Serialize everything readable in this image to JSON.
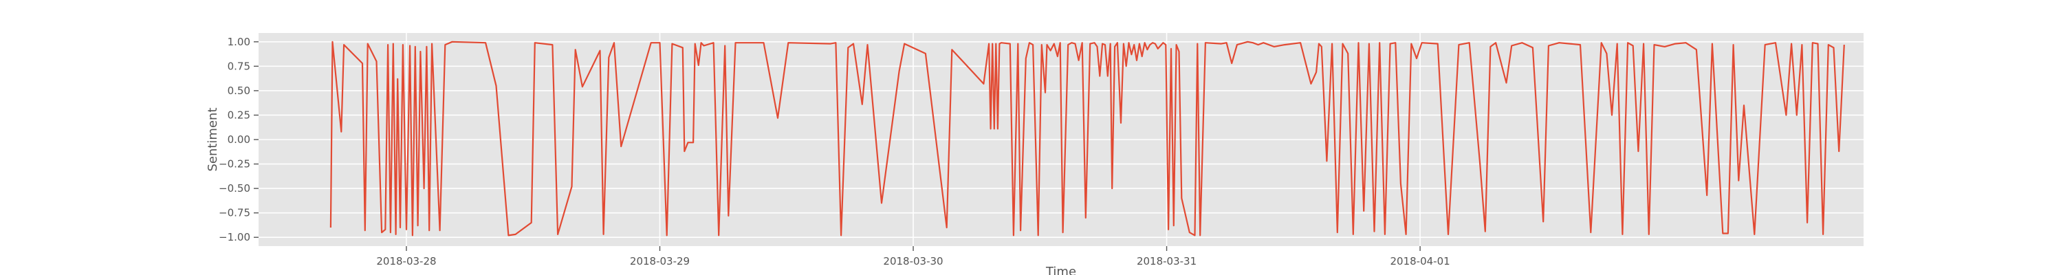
{
  "chart_data": {
    "type": "line",
    "title": "",
    "xlabel": "Time",
    "ylabel": "Sentiment",
    "ylim": [
      -1.09,
      1.09
    ],
    "xlim": [
      "2018-03-27T10:00",
      "2018-04-02T18:00"
    ],
    "grid": true,
    "line_color": "#e24a33",
    "background": "#e5e5e5",
    "yticks": [
      {
        "value": 1.0,
        "label": "1.00"
      },
      {
        "value": 0.75,
        "label": "0.75"
      },
      {
        "value": 0.5,
        "label": "0.50"
      },
      {
        "value": 0.25,
        "label": "0.25"
      },
      {
        "value": 0.0,
        "label": "0.00"
      },
      {
        "value": -0.25,
        "label": "−0.25"
      },
      {
        "value": -0.5,
        "label": "−0.50"
      },
      {
        "value": -0.75,
        "label": "−0.75"
      },
      {
        "value": -1.0,
        "label": "−1.00"
      }
    ],
    "xticks": [
      {
        "value": "2018-03-28T00:00",
        "label": "2018-03-28"
      },
      {
        "value": "2018-03-29T00:00",
        "label": "2018-03-29"
      },
      {
        "value": "2018-03-30T00:00",
        "label": "2018-03-30"
      },
      {
        "value": "2018-03-31T00:00",
        "label": "2018-03-31"
      },
      {
        "value": "2018-04-01T00:00",
        "label": "2018-04-01"
      }
    ],
    "series": [
      {
        "points": [
          [
            "2018-03-27T16:50",
            -0.9
          ],
          [
            "2018-03-27T17:00",
            1.0
          ],
          [
            "2018-03-27T17:50",
            0.08
          ],
          [
            "2018-03-27T18:05",
            0.97
          ],
          [
            "2018-03-27T19:50",
            0.78
          ],
          [
            "2018-03-27T20:05",
            -0.93
          ],
          [
            "2018-03-27T20:20",
            0.98
          ],
          [
            "2018-03-27T21:10",
            0.8
          ],
          [
            "2018-03-27T21:40",
            -0.95
          ],
          [
            "2018-03-27T22:00",
            -0.92
          ],
          [
            "2018-03-27T22:15",
            0.97
          ],
          [
            "2018-03-27T22:30",
            -0.95
          ],
          [
            "2018-03-27T22:45",
            0.98
          ],
          [
            "2018-03-27T23:00",
            -0.97
          ],
          [
            "2018-03-27T23:10",
            0.62
          ],
          [
            "2018-03-27T23:25",
            -0.9
          ],
          [
            "2018-03-27T23:40",
            0.97
          ],
          [
            "2018-03-28T00:00",
            -0.92
          ],
          [
            "2018-03-28T00:20",
            0.96
          ],
          [
            "2018-03-28T00:35",
            -0.98
          ],
          [
            "2018-03-28T00:50",
            0.95
          ],
          [
            "2018-03-28T01:05",
            -0.88
          ],
          [
            "2018-03-28T01:20",
            0.9
          ],
          [
            "2018-03-28T01:40",
            -0.5
          ],
          [
            "2018-03-28T01:55",
            0.95
          ],
          [
            "2018-03-28T02:10",
            -0.93
          ],
          [
            "2018-03-28T02:25",
            0.98
          ],
          [
            "2018-03-28T03:10",
            -0.93
          ],
          [
            "2018-03-28T03:40",
            0.97
          ],
          [
            "2018-03-28T04:20",
            1.0
          ],
          [
            "2018-03-28T07:30",
            0.99
          ],
          [
            "2018-03-28T08:30",
            0.55
          ],
          [
            "2018-03-28T09:40",
            -0.98
          ],
          [
            "2018-03-28T10:20",
            -0.97
          ],
          [
            "2018-03-28T11:50",
            -0.85
          ],
          [
            "2018-03-28T12:10",
            0.99
          ],
          [
            "2018-03-28T13:50",
            0.97
          ],
          [
            "2018-03-28T14:20",
            -0.97
          ],
          [
            "2018-03-28T15:40",
            -0.48
          ],
          [
            "2018-03-28T16:00",
            0.92
          ],
          [
            "2018-03-28T16:40",
            0.54
          ],
          [
            "2018-03-28T18:20",
            0.91
          ],
          [
            "2018-03-28T18:40",
            -0.97
          ],
          [
            "2018-03-28T19:10",
            0.84
          ],
          [
            "2018-03-28T19:40",
            0.99
          ],
          [
            "2018-03-28T20:20",
            -0.07
          ],
          [
            "2018-03-28T23:10",
            0.99
          ],
          [
            "2018-03-29T00:00",
            0.99
          ],
          [
            "2018-03-29T00:40",
            -0.98
          ],
          [
            "2018-03-29T01:10",
            0.98
          ],
          [
            "2018-03-29T02:10",
            0.94
          ],
          [
            "2018-03-29T02:20",
            -0.12
          ],
          [
            "2018-03-29T02:40",
            -0.03
          ],
          [
            "2018-03-29T03:10",
            -0.03
          ],
          [
            "2018-03-29T03:20",
            0.98
          ],
          [
            "2018-03-29T03:40",
            0.76
          ],
          [
            "2018-03-29T03:55",
            0.99
          ],
          [
            "2018-03-29T04:10",
            0.96
          ],
          [
            "2018-03-29T05:05",
            0.99
          ],
          [
            "2018-03-29T05:35",
            -0.98
          ],
          [
            "2018-03-29T06:10",
            0.96
          ],
          [
            "2018-03-29T06:30",
            -0.78
          ],
          [
            "2018-03-29T07:10",
            0.99
          ],
          [
            "2018-03-29T09:50",
            0.99
          ],
          [
            "2018-03-29T11:10",
            0.22
          ],
          [
            "2018-03-29T12:10",
            0.99
          ],
          [
            "2018-03-29T16:10",
            0.98
          ],
          [
            "2018-03-29T16:40",
            0.99
          ],
          [
            "2018-03-29T17:10",
            -0.98
          ],
          [
            "2018-03-29T17:50",
            0.94
          ],
          [
            "2018-03-29T18:20",
            0.98
          ],
          [
            "2018-03-29T19:10",
            0.36
          ],
          [
            "2018-03-29T19:40",
            0.97
          ],
          [
            "2018-03-29T21:00",
            -0.65
          ],
          [
            "2018-03-29T22:40",
            0.7
          ],
          [
            "2018-03-29T23:10",
            0.98
          ],
          [
            "2018-03-30T01:10",
            0.88
          ],
          [
            "2018-03-30T03:10",
            -0.9
          ],
          [
            "2018-03-30T03:40",
            0.92
          ],
          [
            "2018-03-30T06:40",
            0.57
          ],
          [
            "2018-03-30T07:10",
            0.98
          ],
          [
            "2018-03-30T07:20",
            0.11
          ],
          [
            "2018-03-30T07:30",
            0.98
          ],
          [
            "2018-03-30T07:40",
            0.11
          ],
          [
            "2018-03-30T07:50",
            0.98
          ],
          [
            "2018-03-30T08:00",
            0.11
          ],
          [
            "2018-03-30T08:10",
            0.98
          ],
          [
            "2018-03-30T08:20",
            0.99
          ],
          [
            "2018-03-30T09:10",
            0.98
          ],
          [
            "2018-03-30T09:30",
            -0.98
          ],
          [
            "2018-03-30T09:55",
            0.98
          ],
          [
            "2018-03-30T10:10",
            -0.93
          ],
          [
            "2018-03-30T10:40",
            0.83
          ],
          [
            "2018-03-30T11:00",
            0.99
          ],
          [
            "2018-03-30T11:20",
            0.97
          ],
          [
            "2018-03-30T11:50",
            -0.98
          ],
          [
            "2018-03-30T12:10",
            0.97
          ],
          [
            "2018-03-30T12:30",
            0.48
          ],
          [
            "2018-03-30T12:40",
            0.97
          ],
          [
            "2018-03-30T13:00",
            0.91
          ],
          [
            "2018-03-30T13:20",
            0.98
          ],
          [
            "2018-03-30T13:40",
            0.85
          ],
          [
            "2018-03-30T13:55",
            0.99
          ],
          [
            "2018-03-30T14:10",
            -0.95
          ],
          [
            "2018-03-30T14:40",
            0.97
          ],
          [
            "2018-03-30T15:00",
            0.99
          ],
          [
            "2018-03-30T15:20",
            0.98
          ],
          [
            "2018-03-30T15:40",
            0.81
          ],
          [
            "2018-03-30T16:00",
            0.99
          ],
          [
            "2018-03-30T16:20",
            -0.8
          ],
          [
            "2018-03-30T16:45",
            0.98
          ],
          [
            "2018-03-30T17:10",
            0.99
          ],
          [
            "2018-03-30T17:25",
            0.95
          ],
          [
            "2018-03-30T17:40",
            0.65
          ],
          [
            "2018-03-30T17:55",
            0.98
          ],
          [
            "2018-03-30T18:10",
            0.97
          ],
          [
            "2018-03-30T18:25",
            0.65
          ],
          [
            "2018-03-30T18:40",
            0.98
          ],
          [
            "2018-03-30T18:50",
            -0.5
          ],
          [
            "2018-03-30T19:05",
            0.95
          ],
          [
            "2018-03-30T19:20",
            0.99
          ],
          [
            "2018-03-30T19:40",
            0.17
          ],
          [
            "2018-03-30T19:55",
            0.98
          ],
          [
            "2018-03-30T20:10",
            0.75
          ],
          [
            "2018-03-30T20:25",
            0.99
          ],
          [
            "2018-03-30T20:40",
            0.87
          ],
          [
            "2018-03-30T20:55",
            0.97
          ],
          [
            "2018-03-30T21:10",
            0.81
          ],
          [
            "2018-03-30T21:25",
            0.98
          ],
          [
            "2018-03-30T21:40",
            0.85
          ],
          [
            "2018-03-30T21:55",
            0.99
          ],
          [
            "2018-03-30T22:10",
            0.92
          ],
          [
            "2018-03-30T22:25",
            0.97
          ],
          [
            "2018-03-30T22:40",
            0.99
          ],
          [
            "2018-03-30T22:55",
            0.98
          ],
          [
            "2018-03-30T23:10",
            0.93
          ],
          [
            "2018-03-30T23:25",
            0.96
          ],
          [
            "2018-03-30T23:40",
            0.99
          ],
          [
            "2018-03-30T23:55",
            0.97
          ],
          [
            "2018-03-31T00:10",
            -0.92
          ],
          [
            "2018-03-31T00:25",
            0.93
          ],
          [
            "2018-03-31T00:40",
            -0.88
          ],
          [
            "2018-03-31T00:55",
            0.97
          ],
          [
            "2018-03-31T01:10",
            0.9
          ],
          [
            "2018-03-31T01:25",
            -0.6
          ],
          [
            "2018-03-31T02:10",
            -0.95
          ],
          [
            "2018-03-31T02:40",
            -0.98
          ],
          [
            "2018-03-31T02:55",
            0.98
          ],
          [
            "2018-03-31T03:10",
            -0.98
          ],
          [
            "2018-03-31T03:40",
            0.99
          ],
          [
            "2018-03-31T05:10",
            0.98
          ],
          [
            "2018-03-31T05:40",
            0.99
          ],
          [
            "2018-03-31T06:10",
            0.78
          ],
          [
            "2018-03-31T06:40",
            0.97
          ],
          [
            "2018-03-31T07:40",
            1.0
          ],
          [
            "2018-03-31T08:10",
            0.99
          ],
          [
            "2018-03-31T08:40",
            0.97
          ],
          [
            "2018-03-31T09:10",
            0.99
          ],
          [
            "2018-03-31T10:10",
            0.95
          ],
          [
            "2018-03-31T11:10",
            0.97
          ],
          [
            "2018-03-31T12:40",
            0.99
          ],
          [
            "2018-03-31T13:40",
            0.57
          ],
          [
            "2018-03-31T14:10",
            0.69
          ],
          [
            "2018-03-31T14:25",
            0.98
          ],
          [
            "2018-03-31T14:40",
            0.95
          ],
          [
            "2018-03-31T15:10",
            -0.22
          ],
          [
            "2018-03-31T15:40",
            0.98
          ],
          [
            "2018-03-31T16:10",
            -0.95
          ],
          [
            "2018-03-31T16:40",
            0.98
          ],
          [
            "2018-03-31T17:10",
            0.88
          ],
          [
            "2018-03-31T17:40",
            -0.97
          ],
          [
            "2018-03-31T18:10",
            0.99
          ],
          [
            "2018-03-31T18:40",
            -0.73
          ],
          [
            "2018-03-31T19:10",
            0.98
          ],
          [
            "2018-03-31T19:40",
            -0.94
          ],
          [
            "2018-03-31T20:10",
            0.99
          ],
          [
            "2018-03-31T20:40",
            -0.97
          ],
          [
            "2018-03-31T21:10",
            0.98
          ],
          [
            "2018-03-31T21:40",
            0.99
          ],
          [
            "2018-03-31T22:10",
            -0.45
          ],
          [
            "2018-03-31T22:40",
            -0.97
          ],
          [
            "2018-03-31T23:10",
            0.98
          ],
          [
            "2018-03-31T23:40",
            0.83
          ],
          [
            "2018-04-01T00:10",
            0.99
          ],
          [
            "2018-04-01T01:40",
            0.98
          ],
          [
            "2018-04-01T02:40",
            -0.97
          ],
          [
            "2018-04-01T03:40",
            0.97
          ],
          [
            "2018-04-01T04:40",
            0.99
          ],
          [
            "2018-04-01T05:40",
            -0.24
          ],
          [
            "2018-04-01T06:10",
            -0.94
          ],
          [
            "2018-04-01T06:40",
            0.95
          ],
          [
            "2018-04-01T07:10",
            0.99
          ],
          [
            "2018-04-01T08:10",
            0.58
          ],
          [
            "2018-04-01T08:40",
            0.96
          ],
          [
            "2018-04-01T09:40",
            0.99
          ],
          [
            "2018-04-01T10:40",
            0.94
          ],
          [
            "2018-04-01T11:40",
            -0.84
          ],
          [
            "2018-04-01T12:10",
            0.96
          ],
          [
            "2018-04-01T13:10",
            0.99
          ],
          [
            "2018-04-01T14:10",
            0.98
          ],
          [
            "2018-04-01T15:10",
            0.97
          ],
          [
            "2018-04-01T16:10",
            -0.95
          ],
          [
            "2018-04-01T17:10",
            0.99
          ],
          [
            "2018-04-01T17:40",
            0.88
          ],
          [
            "2018-04-01T18:10",
            0.25
          ],
          [
            "2018-04-01T18:40",
            0.98
          ],
          [
            "2018-04-01T19:10",
            -0.97
          ],
          [
            "2018-04-01T19:40",
            0.99
          ],
          [
            "2018-04-01T20:10",
            0.96
          ],
          [
            "2018-04-01T20:40",
            -0.12
          ],
          [
            "2018-04-01T21:10",
            0.98
          ],
          [
            "2018-04-01T21:40",
            -0.97
          ],
          [
            "2018-04-01T22:10",
            0.97
          ],
          [
            "2018-04-01T23:10",
            0.95
          ],
          [
            "2018-04-02T00:10",
            0.98
          ],
          [
            "2018-04-02T01:10",
            0.99
          ],
          [
            "2018-04-02T02:10",
            0.92
          ],
          [
            "2018-04-02T03:10",
            -0.57
          ],
          [
            "2018-04-02T03:40",
            0.98
          ],
          [
            "2018-04-02T04:40",
            -0.96
          ],
          [
            "2018-04-02T05:10",
            -0.96
          ],
          [
            "2018-04-02T05:40",
            0.97
          ],
          [
            "2018-04-02T06:10",
            -0.42
          ],
          [
            "2018-04-02T06:40",
            0.35
          ],
          [
            "2018-04-02T07:40",
            -0.97
          ],
          [
            "2018-04-02T08:40",
            0.97
          ],
          [
            "2018-04-02T09:40",
            0.99
          ],
          [
            "2018-04-02T10:40",
            0.25
          ],
          [
            "2018-04-02T11:10",
            0.98
          ],
          [
            "2018-04-02T11:40",
            0.25
          ],
          [
            "2018-04-02T12:10",
            0.97
          ],
          [
            "2018-04-02T12:40",
            -0.85
          ],
          [
            "2018-04-02T13:10",
            0.99
          ],
          [
            "2018-04-02T13:40",
            0.98
          ],
          [
            "2018-04-02T14:10",
            -0.97
          ],
          [
            "2018-04-02T14:40",
            0.97
          ],
          [
            "2018-04-02T15:10",
            0.94
          ],
          [
            "2018-04-02T15:40",
            -0.12
          ],
          [
            "2018-04-02T16:10",
            0.97
          ]
        ]
      }
    ]
  }
}
